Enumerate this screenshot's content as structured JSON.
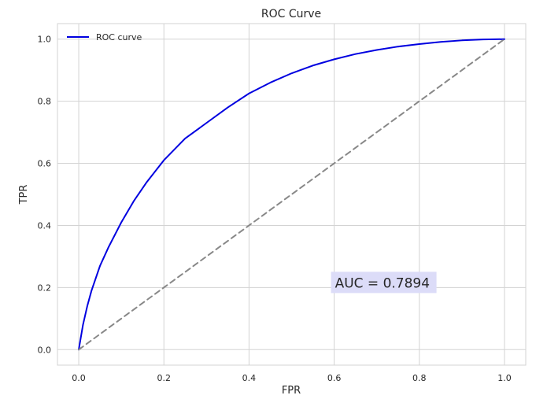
{
  "chart_data": {
    "type": "line",
    "title": "ROC Curve",
    "xlabel": "FPR",
    "ylabel": "TPR",
    "xlim": [
      -0.05,
      1.05
    ],
    "ylim": [
      -0.05,
      1.05
    ],
    "x_ticks": [
      0.0,
      0.2,
      0.4,
      0.6,
      0.8,
      1.0
    ],
    "y_ticks": [
      0.0,
      0.2,
      0.4,
      0.6,
      0.8,
      1.0
    ],
    "x_tick_labels": [
      "0.0",
      "0.2",
      "0.4",
      "0.6",
      "0.8",
      "1.0"
    ],
    "y_tick_labels": [
      "0.0",
      "0.2",
      "0.4",
      "0.6",
      "0.8",
      "1.0"
    ],
    "grid": true,
    "legend": {
      "placement": "top-left",
      "entries": [
        "ROC curve"
      ]
    },
    "series": [
      {
        "name": "ROC curve",
        "color": "#0000e0",
        "style": "solid",
        "x": [
          0.0,
          0.005,
          0.01,
          0.02,
          0.03,
          0.05,
          0.07,
          0.1,
          0.13,
          0.16,
          0.2,
          0.25,
          0.3,
          0.35,
          0.4,
          0.45,
          0.5,
          0.55,
          0.6,
          0.65,
          0.7,
          0.75,
          0.8,
          0.85,
          0.9,
          0.95,
          1.0
        ],
        "y": [
          0.0,
          0.04,
          0.08,
          0.14,
          0.19,
          0.27,
          0.33,
          0.41,
          0.48,
          0.54,
          0.61,
          0.68,
          0.73,
          0.78,
          0.825,
          0.86,
          0.89,
          0.915,
          0.935,
          0.952,
          0.965,
          0.976,
          0.984,
          0.991,
          0.996,
          0.999,
          1.0
        ]
      },
      {
        "name": "",
        "color": "#888888",
        "style": "dashed",
        "x": [
          0.0,
          1.0
        ],
        "y": [
          0.0,
          1.0
        ]
      }
    ],
    "annotations": [
      {
        "text": "AUC = 0.7894",
        "x": 0.6,
        "y": 0.2,
        "box_color": "#dcdcf8"
      }
    ]
  },
  "colors": {
    "background": "#ffffff",
    "grid": "#d3d3d3",
    "axis": "#d3d3d3",
    "text": "#262626"
  }
}
